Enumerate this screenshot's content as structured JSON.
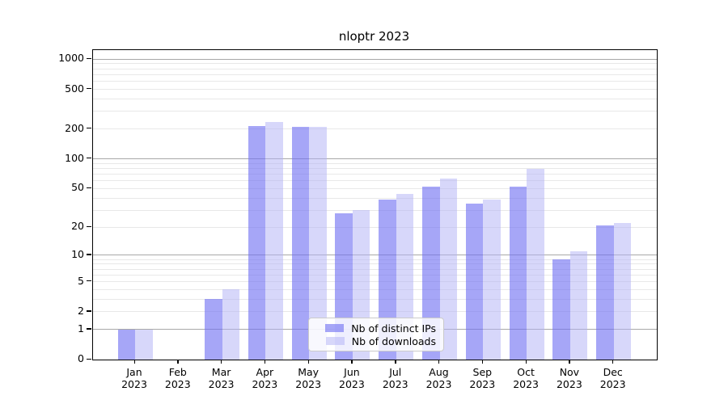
{
  "title": "nloptr 2023",
  "legend": {
    "items": [
      {
        "label": "Nb of distinct IPs",
        "color": "rgba(112,112,242,0.62)"
      },
      {
        "label": "Nb of downloads",
        "color": "rgba(178,178,246,0.52)"
      }
    ]
  },
  "colors": {
    "bar_distinct_ips": "rgba(112,112,242,0.62)",
    "bar_downloads": "rgba(178,178,246,0.52)",
    "grid_major": "#a8a8a8",
    "grid_minor": "#e8e8e8",
    "axis": "#000000"
  },
  "chart_data": {
    "type": "bar",
    "title": "nloptr 2023",
    "xlabel": "",
    "ylabel": "",
    "categories": [
      "Jan",
      "Feb",
      "Mar",
      "Apr",
      "May",
      "Jun",
      "Jul",
      "Aug",
      "Sep",
      "Oct",
      "Nov",
      "Dec"
    ],
    "year": "2023",
    "series": [
      {
        "name": "Nb of distinct IPs",
        "values": [
          1,
          0,
          3,
          215,
          210,
          28,
          39,
          52,
          35,
          52,
          9,
          21
        ]
      },
      {
        "name": "Nb of downloads",
        "values": [
          1,
          0,
          4,
          234,
          211,
          30,
          44,
          63,
          39,
          80,
          11,
          22
        ]
      }
    ],
    "yscale": "log1p",
    "ylim": [
      0,
      1250
    ],
    "ytick_values": [
      0,
      1,
      2,
      5,
      10,
      20,
      50,
      100,
      200,
      500,
      1000
    ],
    "minor_grid_values": [
      2,
      3,
      4,
      5,
      6,
      7,
      8,
      9,
      20,
      30,
      40,
      50,
      60,
      70,
      80,
      90,
      200,
      300,
      400,
      500,
      600,
      700,
      800,
      900
    ],
    "major_grid_values": [
      1,
      10,
      100,
      1000
    ],
    "grid": true,
    "legend_position": "inside-bottom-center"
  }
}
